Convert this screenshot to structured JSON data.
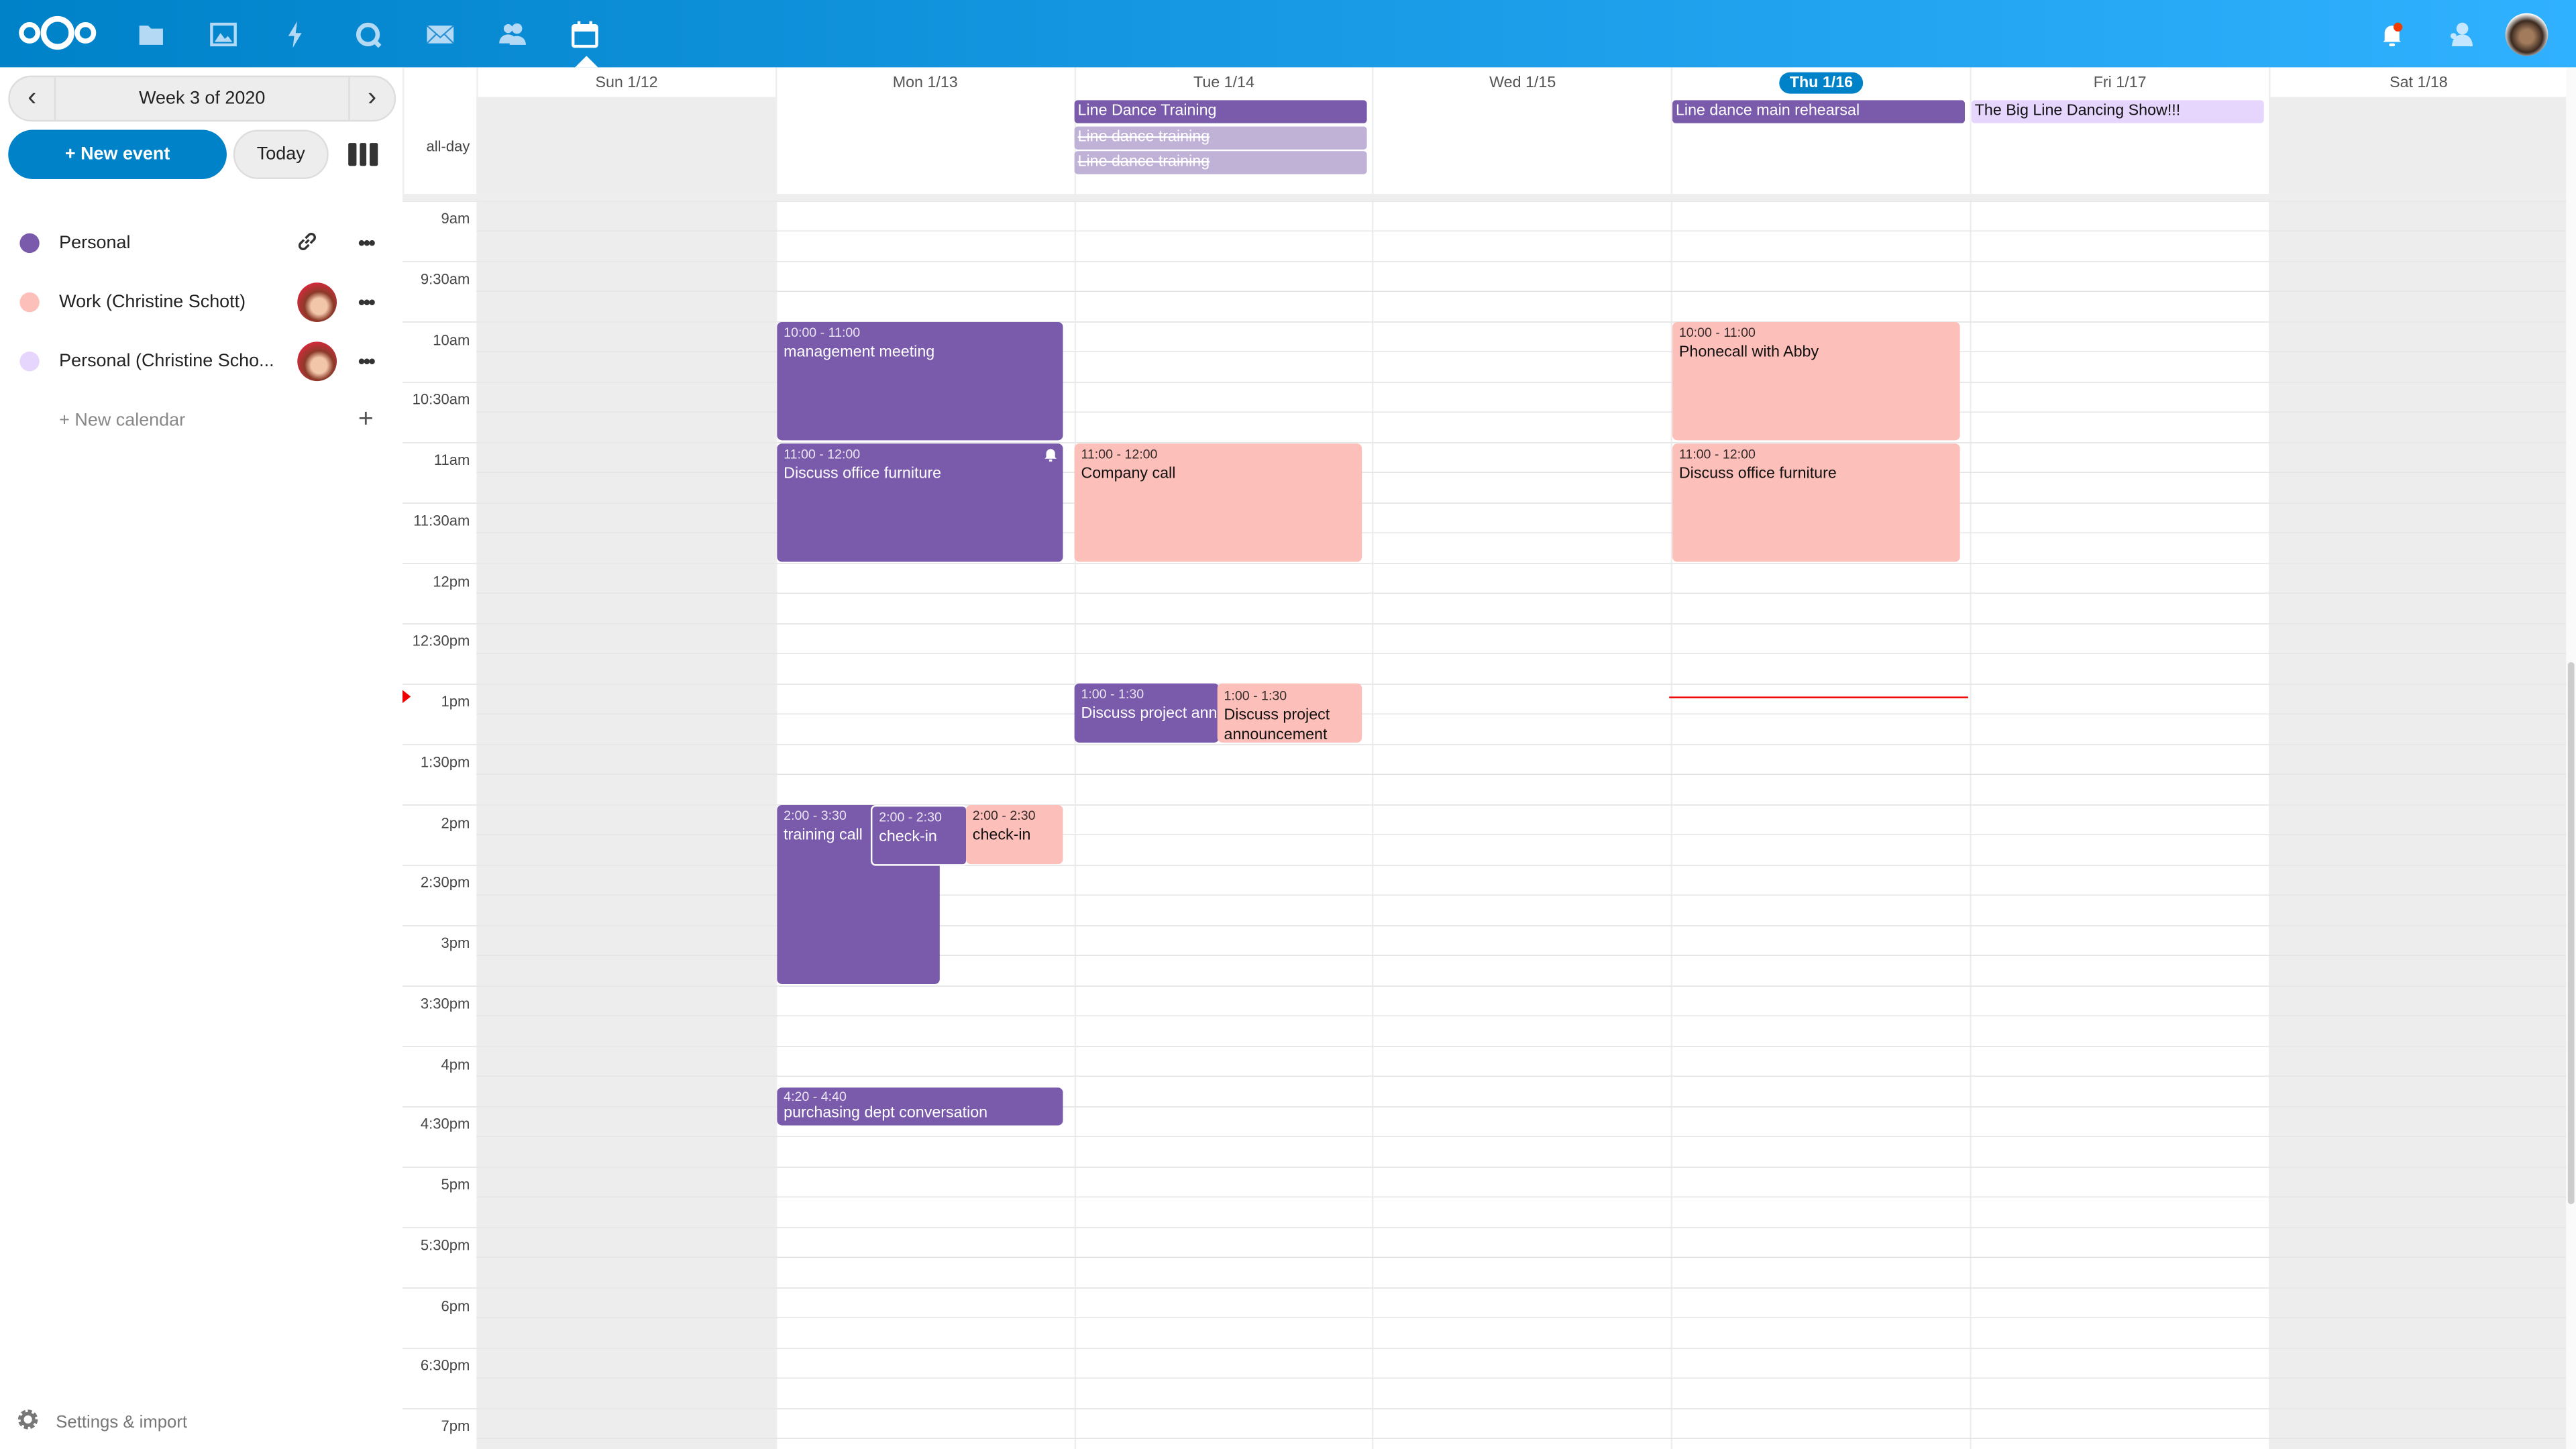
{
  "header": {
    "apps": [
      {
        "icon": "files-icon"
      },
      {
        "icon": "photos-icon"
      },
      {
        "icon": "activity-icon"
      },
      {
        "icon": "talk-icon"
      },
      {
        "icon": "mail-icon"
      },
      {
        "icon": "contacts-icon"
      },
      {
        "icon": "calendar-icon",
        "active": true
      }
    ],
    "right": [
      "notifications-icon",
      "contacts-menu-icon",
      "user-avatar"
    ],
    "accent": "#0082c9"
  },
  "sidebar": {
    "week_label": "Week 3 of 2020",
    "new_event": "+ New event",
    "today": "Today",
    "calendars": [
      {
        "name": "Personal",
        "color": "#795aab",
        "action": "link-icon"
      },
      {
        "name": "Work (Christine Schott)",
        "color": "#fdbfb9",
        "action": "shared-avatar"
      },
      {
        "name": "Personal (Christine Scho...",
        "color": "#e6d5fd",
        "action": "shared-avatar"
      }
    ],
    "new_calendar": "+ New calendar",
    "settings": "Settings & import"
  },
  "calendar": {
    "days": [
      "Sun 1/12",
      "Mon 1/13",
      "Tue 1/14",
      "Wed 1/15",
      "Thu 1/16",
      "Fri 1/17",
      "Sat 1/18"
    ],
    "today": "Thu 1/16",
    "allday_label": "all-day",
    "time_labels": [
      "9am",
      "9:30am",
      "10am",
      "10:30am",
      "11am",
      "11:30am",
      "12pm",
      "12:30pm",
      "1pm",
      "1:30pm",
      "2pm",
      "2:30pm",
      "3pm",
      "3:30pm",
      "4pm",
      "4:30pm",
      "5pm",
      "5:30pm",
      "6pm",
      "6:30pm",
      "7pm"
    ],
    "allday_events": [
      {
        "day": "Tue 1/14",
        "title": "Line Dance Training"
      },
      {
        "day": "Tue 1/14",
        "title": "Line dance training",
        "cancelled": true
      },
      {
        "day": "Tue 1/14",
        "title": "Line dance training",
        "cancelled": true
      },
      {
        "day": "Thu 1/16",
        "title": "Line dance main rehearsal"
      },
      {
        "day": "Fri 1/17",
        "title": "The Big Line Dancing Show!!!"
      }
    ],
    "events": [
      {
        "day": "Mon 1/13",
        "time": "10:00 - 11:00",
        "title": "management meeting",
        "calendar": "Personal"
      },
      {
        "day": "Mon 1/13",
        "time": "11:00 - 12:00",
        "title": "Discuss office furniture",
        "calendar": "Personal",
        "alarm": true
      },
      {
        "day": "Tue 1/14",
        "time": "11:00 - 12:00",
        "title": "Company call",
        "calendar": "Work (Christine Schott)"
      },
      {
        "day": "Tue 1/14",
        "time": "1:00 - 1:30",
        "title": "Discuss project announcement",
        "calendar": "Personal"
      },
      {
        "day": "Tue 1/14",
        "time": "1:00 - 1:30",
        "title": "Discuss project announcement",
        "calendar": "Work (Christine Schott)"
      },
      {
        "day": "Mon 1/13",
        "time": "2:00 - 3:30",
        "title": "training call",
        "calendar": "Personal"
      },
      {
        "day": "Mon 1/13",
        "time": "2:00 - 2:30",
        "title": "check-in",
        "calendar": "Personal"
      },
      {
        "day": "Mon 1/13",
        "time": "2:00 - 2:30",
        "title": "check-in",
        "calendar": "Work (Christine Schott)"
      },
      {
        "day": "Mon 1/13",
        "time": "4:20 - 4:40",
        "title": "purchasing dept conversation",
        "calendar": "Personal"
      },
      {
        "day": "Thu 1/16",
        "time": "10:00 - 11:00",
        "title": "Phonecall with Abby",
        "calendar": "Work (Christine Schott)"
      },
      {
        "day": "Thu 1/16",
        "time": "11:00 - 12:00",
        "title": "Discuss office furniture",
        "calendar": "Work (Christine Schott)"
      }
    ]
  }
}
